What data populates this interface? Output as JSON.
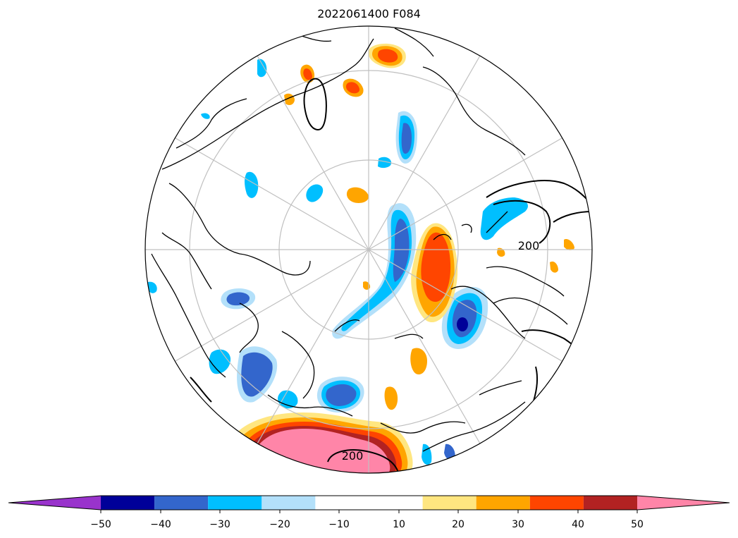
{
  "title": "2022061400 F084",
  "contour_label": "200",
  "colorbar": {
    "min": -60,
    "max": 60,
    "ticks": [
      "−50",
      "−40",
      "−30",
      "−20",
      "−10",
      "10",
      "20",
      "30",
      "40",
      "50"
    ],
    "bins": [
      {
        "from": -60,
        "to": -50,
        "color": "#9933cc"
      },
      {
        "from": -50,
        "to": -40,
        "color": "#000099"
      },
      {
        "from": -40,
        "to": -30,
        "color": "#3366cc"
      },
      {
        "from": -30,
        "to": -20,
        "color": "#00bfff"
      },
      {
        "from": -20,
        "to": -10,
        "color": "#b3e0fa"
      },
      {
        "from": -10,
        "to": 10,
        "color": "#ffffff"
      },
      {
        "from": 10,
        "to": 20,
        "color": "#ffe680"
      },
      {
        "from": 20,
        "to": 30,
        "color": "#ffa500"
      },
      {
        "from": 30,
        "to": 40,
        "color": "#ff4500"
      },
      {
        "from": 40,
        "to": 50,
        "color": "#b22222"
      },
      {
        "from": 50,
        "to": 60,
        "color": "#ff85a8"
      }
    ]
  }
}
